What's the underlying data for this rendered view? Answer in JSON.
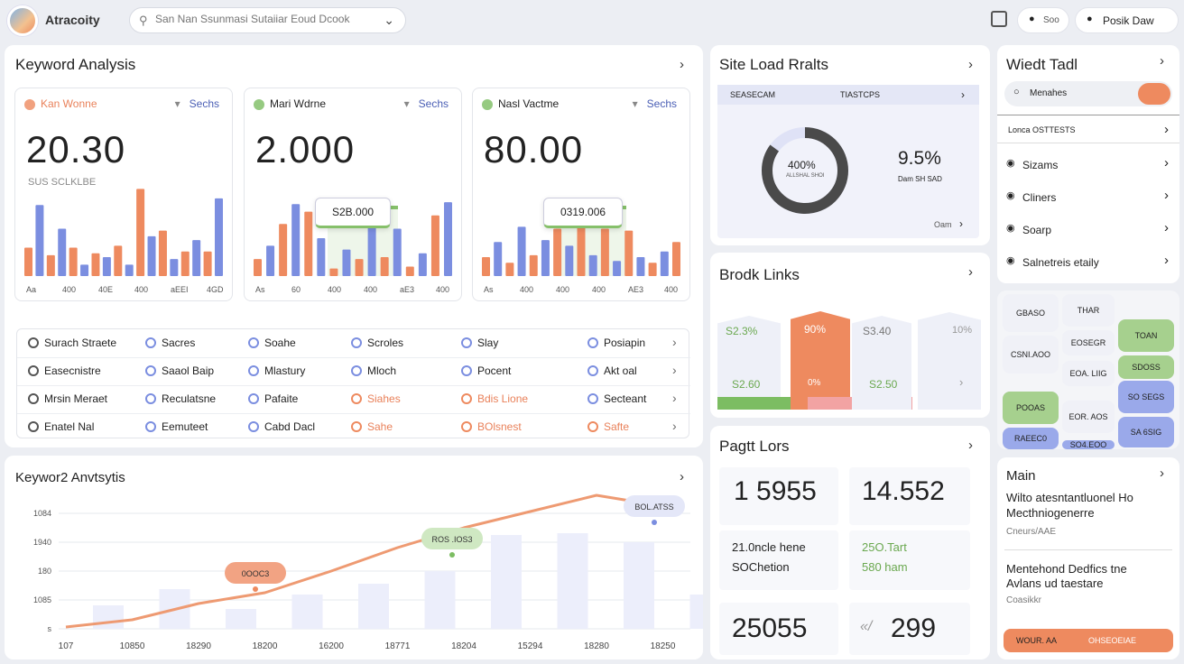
{
  "topbar": {
    "app_name": "Atracoity",
    "search_placeholder": "San Nan Ssunmasi Sutaiiar Eoud Dcook",
    "pill_label": "Soo",
    "button_label": "Posik Daw"
  },
  "keyword": {
    "title": "Keyword Analysis",
    "cards": [
      {
        "label": "Kan Wonne",
        "select": "Sechs",
        "value": "20.30",
        "sub": "SUS SCLKLBE",
        "x_labels": [
          "Aa",
          "400",
          "40E",
          "400",
          "aEEI",
          "4GD"
        ],
        "bars": [
          30,
          75,
          22,
          50,
          30,
          12,
          24,
          20,
          32,
          12,
          92,
          42,
          48,
          18,
          26,
          38,
          26,
          82
        ],
        "tooltip": ""
      },
      {
        "label": "Mari Wdrne",
        "select": "Sechs",
        "value": "2.000",
        "sub": "",
        "x_labels": [
          "As",
          "60",
          "400",
          "400",
          "aE3",
          "400"
        ],
        "bars": [
          18,
          32,
          55,
          76,
          68,
          40,
          8,
          28,
          18,
          70,
          20,
          50,
          10,
          24,
          64,
          78
        ],
        "tooltip": "S2B.000"
      },
      {
        "label": "Nasl Vactme",
        "select": "Sechs",
        "value": "80.00",
        "sub": "",
        "x_labels": [
          "As",
          "400",
          "400",
          "400",
          "AE3",
          "400"
        ],
        "bars": [
          20,
          36,
          14,
          52,
          22,
          38,
          50,
          32,
          60,
          22,
          50,
          16,
          48,
          20,
          14,
          26,
          36
        ],
        "tooltip": "0319.006"
      }
    ],
    "list": [
      [
        "Surach Straete",
        "Sacres",
        "Soahe",
        "Scroles",
        "Slay",
        "Posiapin"
      ],
      [
        "Easecnistre",
        "Saaol Baip",
        "Mlastury",
        "Mloch",
        "Pocent",
        "Akt oal"
      ],
      [
        "Mrsin Meraet",
        "Reculatsne",
        "Pafaite",
        "Siahes",
        "Bdis Lione",
        "Secteant"
      ],
      [
        "Enatel Nal",
        "Eemuteet",
        "Cabd Dacl",
        "Sahe",
        "BOlsnest",
        "Safte"
      ]
    ]
  },
  "trend": {
    "title": "Keywor2 Anvtsytis",
    "chart_data": {
      "type": "line",
      "categories": [
        "107",
        "10850",
        "18290",
        "18200",
        "16200",
        "18771",
        "18204",
        "15294",
        "18280",
        "18250"
      ],
      "y_ticks": [
        "s",
        "1085",
        "180",
        "1940",
        "1084"
      ],
      "series": [
        {
          "values": [
            2,
            10,
            28,
            40,
            64,
            90,
            112,
            130,
            148,
            136
          ]
        }
      ],
      "bars": [
        26,
        44,
        22,
        38,
        50,
        64,
        104,
        106,
        96,
        38
      ],
      "labels": [
        "0OOC3",
        "ROS .IOS3",
        "BOL.ATSS"
      ]
    }
  },
  "siteload": {
    "title": "Site Load Rralts",
    "col1": "SEASECAM",
    "col2": "TIASTCPS",
    "donut_pct": 0.85,
    "donut_label": "400%",
    "donut_sub": "ALLSHAL SHOI",
    "stat_value": "9.5%",
    "stat_sub": "Dam SH SAD",
    "footer": "Oam"
  },
  "broken": {
    "title": "Brodk Links",
    "tiles": [
      {
        "top": "S2.3%",
        "bot": "S2.60"
      },
      {
        "top": "90%",
        "bot": "0%"
      },
      {
        "top": "S3.40",
        "bot": "S2.50"
      },
      {
        "top": "10%",
        "bot": ""
      }
    ]
  },
  "pagelors": {
    "title": "Pagtt Lors",
    "v1": "1 5955",
    "v2": "14.552",
    "t1": "21.0ncle hene",
    "t2": "SOChetion",
    "t3": "25O.Tart",
    "t4": "580 ham",
    "v3": "25055",
    "v4": "299",
    "v4_prefix": "«/"
  },
  "rightpanel": {
    "title": "Wiedt Tadl",
    "pill_text": "Menahes",
    "row_text": "Lonca OSTTESTS",
    "items": [
      "Sizams",
      "Cliners",
      "Soarp",
      "Salnetreis etaily"
    ]
  },
  "grid": {
    "tiles": [
      "GBASO",
      "THAR",
      "TOAN",
      "CSNI.AOO",
      "EOSEGR",
      "SDOSS",
      "EOA. LIIG",
      "SO SEGS",
      "POOAS",
      "EOR. AOS",
      "SA 6SIG",
      "RAEEC0",
      "SO4.EOO"
    ]
  },
  "main": {
    "title": "Main",
    "line1": "Wilto atesntantluonel Ho",
    "line2": "Mecthniogenerre",
    "meta1": "Cneurs/AAE",
    "line3": "Mentehond Dedfics tne",
    "line4": "Avlans ud taestare",
    "meta2": "Coasikkr",
    "btn_left": "WOUR. AA",
    "btn_right": "OHSEOEIAE"
  }
}
